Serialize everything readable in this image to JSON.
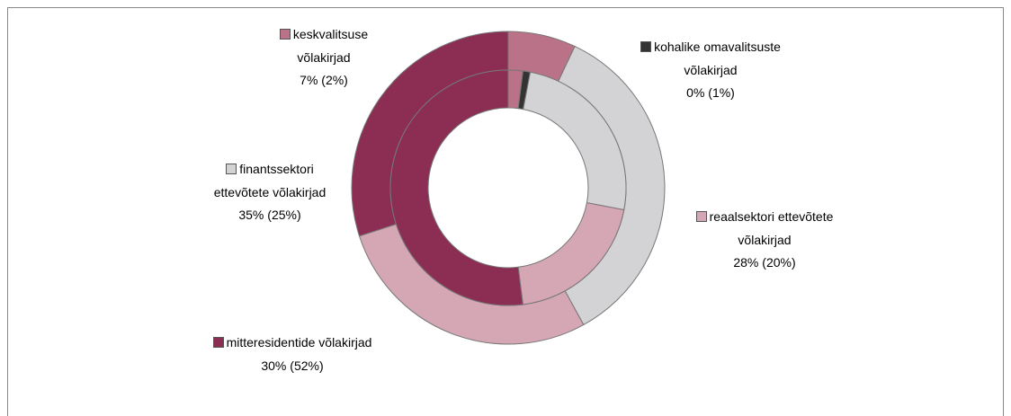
{
  "chart_data": {
    "type": "donut",
    "categories": [
      "keskvalitsuse võlakirjad",
      "kohalike omavalitsuste võlakirjad",
      "finantssektori ettevõtete võlakirjad",
      "reaalsektori ettevõtete võlakirjad",
      "mitteresidentide võlakirjad"
    ],
    "colors": [
      "#b97287",
      "#333333",
      "#d3d3d5",
      "#d5a6b4",
      "#8c2d53"
    ],
    "series": [
      {
        "values": [
          7,
          0,
          35,
          28,
          30
        ],
        "value_labels": [
          "7%",
          "0%",
          "35%",
          "28%",
          "30%"
        ]
      },
      {
        "values": [
          2,
          1,
          25,
          20,
          52
        ],
        "value_labels": [
          "(2%)",
          "(1%)",
          "(25%)",
          "(20%)",
          "(52%)"
        ]
      }
    ]
  }
}
